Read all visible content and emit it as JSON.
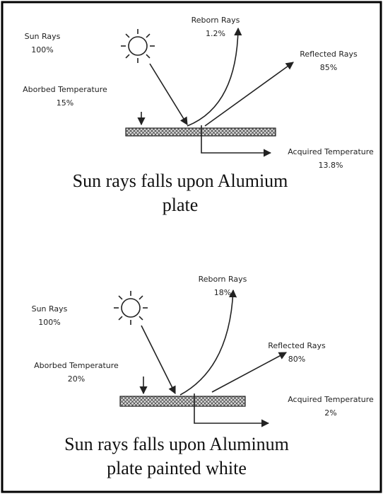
{
  "panels": [
    {
      "sun_rays": {
        "label": "Sun Rays",
        "value": "100%"
      },
      "reborn_rays": {
        "label": "Reborn Rays",
        "value": "1.2%"
      },
      "reflected_rays": {
        "label": "Reflected Rays",
        "value": "85%"
      },
      "absorbed_temperature": {
        "label": "Aborbed Temperature",
        "value": "15%"
      },
      "acquired_temperature": {
        "label": "Acquired Temperature",
        "value": "13.8%"
      },
      "caption": [
        "Sun rays falls upon Alumium",
        "plate"
      ]
    },
    {
      "sun_rays": {
        "label": "Sun Rays",
        "value": "100%"
      },
      "reborn_rays": {
        "label": "Reborn Rays",
        "value": "18%"
      },
      "reflected_rays": {
        "label": "Reflected Rays",
        "value": "80%"
      },
      "absorbed_temperature": {
        "label": "Aborbed Temperature",
        "value": "20%"
      },
      "acquired_temperature": {
        "label": "Acquired Temperature",
        "value": "2%"
      },
      "caption": [
        "Sun rays falls upon Aluminum",
        "plate painted white"
      ]
    }
  ]
}
